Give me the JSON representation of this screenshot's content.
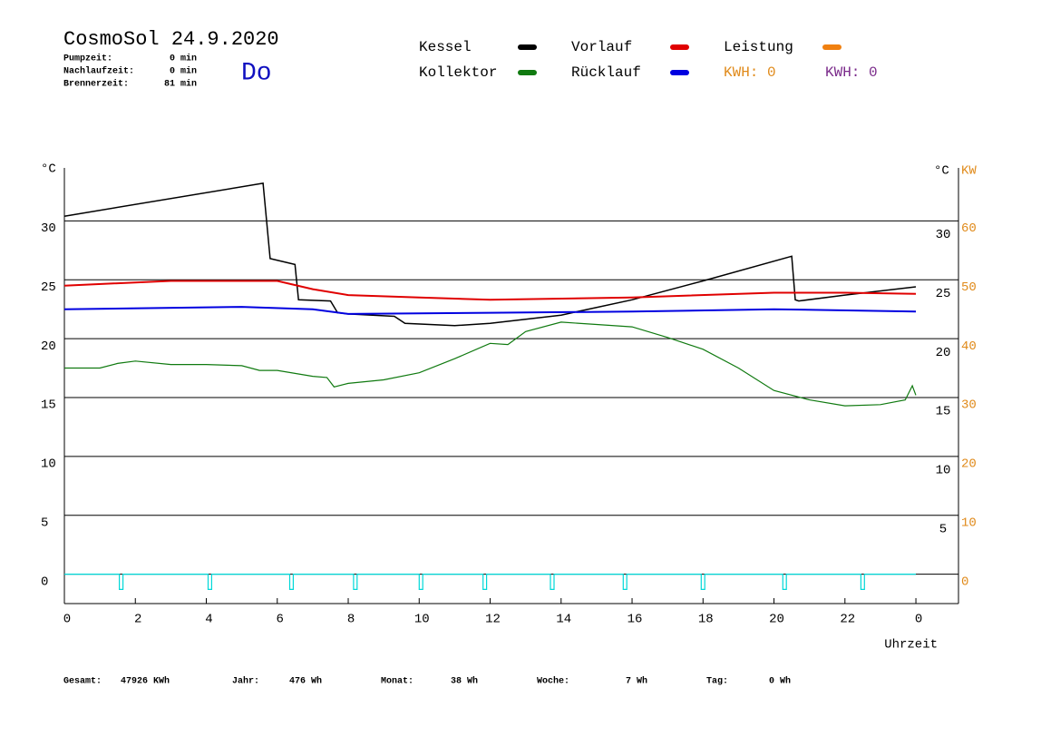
{
  "header": {
    "title": "CosmoSol 24.9.2020",
    "day": "Do",
    "stats": [
      [
        "Pumpzeit:",
        "0 min"
      ],
      [
        "Nachlaufzeit:",
        "0 min"
      ],
      [
        "Brennerzeit:",
        "81 min"
      ]
    ],
    "kwh": [
      {
        "text": "KWH: 0",
        "color": "#e08a1a"
      },
      {
        "text": "KWH: 0",
        "color": "#7a2a8a"
      }
    ]
  },
  "chart_data": {
    "type": "line",
    "y_unit": "°C",
    "y_unit_right": "°C",
    "y2_unit": "KW",
    "x_label": "Uhrzeit",
    "xlim": [
      0,
      25.2
    ],
    "ylim": [
      -2.5,
      34.5
    ],
    "y2lim": [
      -5,
      69
    ],
    "xticks": [
      0,
      2,
      4,
      6,
      8,
      10,
      12,
      14,
      16,
      18,
      20,
      22,
      {
        "value": 24,
        "label": "0"
      }
    ],
    "yticks": [
      0,
      5,
      10,
      15,
      20,
      25,
      30
    ],
    "yticks_right": [
      5,
      10,
      15,
      20,
      25,
      30
    ],
    "y2ticks": [
      0,
      10,
      20,
      30,
      40,
      50,
      60
    ],
    "grid": true,
    "series": [
      {
        "name": "Kessel",
        "color": "#000000",
        "x": [
          0,
          5.6,
          5.8,
          6.5,
          6.6,
          7.5,
          7.7,
          8,
          9.3,
          9.6,
          11,
          12,
          14,
          16,
          18,
          20.5,
          20.6,
          20.7,
          22,
          24
        ],
        "values": [
          30.4,
          33.2,
          26.8,
          26.3,
          23.3,
          23.2,
          22.2,
          22.1,
          21.9,
          21.3,
          21.1,
          21.3,
          22.0,
          23.3,
          24.9,
          27.0,
          23.3,
          23.2,
          23.7,
          24.4
        ]
      },
      {
        "name": "Vorlauf",
        "color": "#e00000",
        "x": [
          0,
          3,
          6,
          7,
          8,
          10,
          12,
          16,
          20,
          22,
          24
        ],
        "values": [
          24.5,
          24.9,
          24.9,
          24.2,
          23.7,
          23.5,
          23.3,
          23.5,
          23.9,
          23.9,
          23.8
        ]
      },
      {
        "name": "Leistung",
        "color": "#f08010",
        "x": [],
        "values": []
      },
      {
        "name": "Kollektor",
        "color": "#107a10",
        "x": [
          0,
          1,
          1.5,
          2,
          3,
          4,
          5,
          5.5,
          6,
          7,
          7.4,
          7.6,
          8,
          9,
          10,
          11,
          12,
          12.5,
          13,
          14,
          15,
          16,
          17,
          18,
          19,
          20,
          21,
          22,
          23,
          23.7,
          23.9,
          24
        ],
        "values": [
          17.5,
          17.5,
          17.9,
          18.1,
          17.8,
          17.8,
          17.7,
          17.3,
          17.3,
          16.8,
          16.7,
          15.9,
          16.2,
          16.5,
          17.1,
          18.3,
          19.6,
          19.5,
          20.6,
          21.4,
          21.2,
          21.0,
          20.1,
          19.1,
          17.5,
          15.6,
          14.8,
          14.3,
          14.4,
          14.8,
          16.0,
          15.2
        ]
      },
      {
        "name": "Rücklauf",
        "color": "#0000e0",
        "x": [
          0,
          5,
          7,
          8,
          12,
          16,
          20,
          24
        ],
        "values": [
          22.5,
          22.7,
          22.5,
          22.1,
          22.2,
          22.3,
          22.5,
          22.3
        ]
      },
      {
        "color": "#00d8d8",
        "x": [
          0,
          1.55,
          1.55,
          1.65,
          1.65,
          4.05,
          4.05,
          4.15,
          4.15,
          6.35,
          6.35,
          6.45,
          6.45,
          8.15,
          8.15,
          8.25,
          8.25,
          10.0,
          10.0,
          10.1,
          10.1,
          11.8,
          11.8,
          11.9,
          11.9,
          13.7,
          13.7,
          13.8,
          13.8,
          15.75,
          15.75,
          15.85,
          15.85,
          17.95,
          17.95,
          18.05,
          18.05,
          20.25,
          20.25,
          20.35,
          20.35,
          22.45,
          22.45,
          22.55,
          22.55,
          24
        ],
        "values": [
          0,
          0,
          -1.3,
          -1.3,
          0,
          0,
          -1.3,
          -1.3,
          0,
          0,
          -1.3,
          -1.3,
          0,
          0,
          -1.3,
          -1.3,
          0,
          0,
          -1.3,
          -1.3,
          0,
          0,
          -1.3,
          -1.3,
          0,
          0,
          -1.3,
          -1.3,
          0,
          0,
          -1.3,
          -1.3,
          0,
          0,
          -1.3,
          -1.3,
          0,
          0,
          -1.3,
          -1.3,
          0,
          0,
          -1.3,
          -1.3,
          0,
          0
        ]
      }
    ]
  },
  "footer": [
    [
      "Gesamt:",
      "47926 KWh"
    ],
    [
      "Jahr:",
      "476 Wh"
    ],
    [
      "Monat:",
      "38 Wh"
    ],
    [
      "Woche:",
      "7 Wh"
    ],
    [
      "Tag:",
      "0 Wh"
    ]
  ]
}
